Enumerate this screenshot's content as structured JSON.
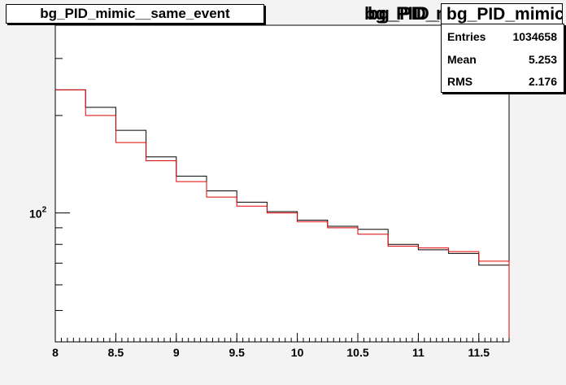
{
  "title": "bg_PID_mimic__same_event",
  "overlap_titles": [
    "bg_PID_mimic__spe",
    "bg_PID_mimic__spe"
  ],
  "stats": {
    "header": "bg_PID_mimic__spe",
    "rows": [
      {
        "key": "Entries",
        "value": "1034658"
      },
      {
        "key": "Mean",
        "value": "5.253"
      },
      {
        "key": "RMS",
        "value": "2.176"
      }
    ]
  },
  "colors": {
    "series_black": "#000000",
    "series_red": "#e00000",
    "frame": "#000000",
    "pad": "#ffffff"
  },
  "chart_data": {
    "type": "line",
    "style": "step-histogram",
    "xlim": [
      8,
      11.75
    ],
    "ylim_log": [
      40,
      380
    ],
    "y_scale": "log",
    "x_ticks": [
      "8",
      "8.5",
      "9",
      "9.5",
      "10",
      "10.5",
      "11",
      "11.5"
    ],
    "x_tick_values": [
      8,
      8.5,
      9,
      9.5,
      10,
      10.5,
      11,
      11.5
    ],
    "y_tick_label": "10^2",
    "bin_edges": [
      8,
      8.25,
      8.5,
      8.75,
      9,
      9.25,
      9.5,
      9.75,
      10,
      10.25,
      10.5,
      10.75,
      11,
      11.25,
      11.5,
      11.75
    ],
    "series": [
      {
        "color": "black",
        "values": [
          240,
          212,
          180,
          149,
          130,
          117,
          108,
          101,
          95,
          91,
          89,
          80,
          77,
          75,
          69
        ]
      },
      {
        "color": "red",
        "values": [
          240,
          200,
          165,
          145,
          125,
          112,
          105,
          100,
          94,
          90,
          86,
          79,
          78,
          76,
          71
        ]
      }
    ]
  }
}
